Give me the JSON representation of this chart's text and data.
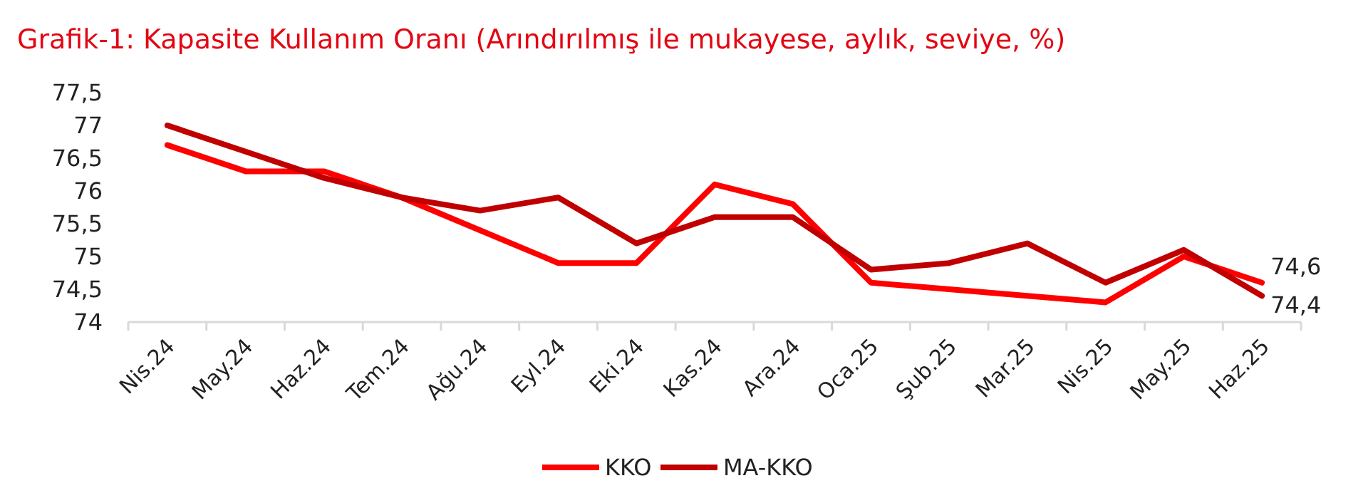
{
  "chart_data": {
    "type": "line",
    "title": "Grafik-1: Kapasite Kullanım Oranı (Arındırılmış ile mukayese, aylık, seviye, %)",
    "categories": [
      "Nis.24",
      "May.24",
      "Haz.24",
      "Tem.24",
      "Ağu.24",
      "Eyl.24",
      "Eki.24",
      "Kas.24",
      "Ara.24",
      "Oca.25",
      "Şub.25",
      "Mar.25",
      "Nis.25",
      "May.25",
      "Haz.25"
    ],
    "series": [
      {
        "name": "KKO",
        "color": "#ff0000",
        "values": [
          76.7,
          76.3,
          76.3,
          75.9,
          75.4,
          74.9,
          74.9,
          76.1,
          75.8,
          74.6,
          74.5,
          74.4,
          74.3,
          75.0,
          74.6
        ],
        "value_labels": [
          null,
          null,
          null,
          null,
          null,
          null,
          null,
          null,
          null,
          null,
          null,
          null,
          null,
          null,
          "74,6"
        ]
      },
      {
        "name": "MA-KKO",
        "color": "#c00000",
        "values": [
          77.0,
          76.6,
          76.2,
          75.9,
          75.7,
          75.9,
          75.2,
          75.6,
          75.6,
          74.8,
          74.9,
          75.2,
          74.6,
          75.1,
          74.4
        ],
        "value_labels": [
          null,
          null,
          null,
          null,
          null,
          null,
          null,
          null,
          null,
          null,
          null,
          null,
          null,
          null,
          "74,4"
        ]
      }
    ],
    "ylim": [
      74,
      77.5
    ],
    "yticks": [
      {
        "value": 74,
        "label": "74"
      },
      {
        "value": 74.5,
        "label": "74,5"
      },
      {
        "value": 75,
        "label": "75"
      },
      {
        "value": 75.5,
        "label": "75,5"
      },
      {
        "value": 76,
        "label": "76"
      },
      {
        "value": 76.5,
        "label": "76,5"
      },
      {
        "value": 77,
        "label": "77"
      },
      {
        "value": 77.5,
        "label": "77,5"
      }
    ],
    "grid": false,
    "legend": "bottom",
    "marker": "none",
    "line_style": "solid"
  }
}
